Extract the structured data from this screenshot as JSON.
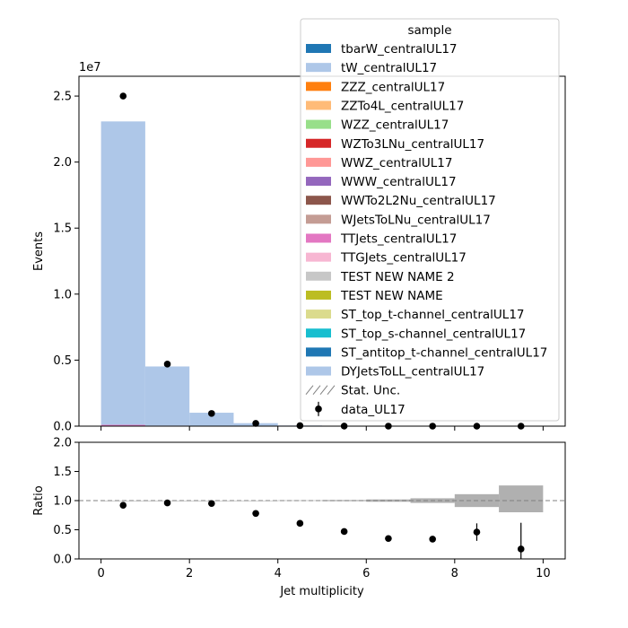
{
  "chart_data": [
    {
      "type": "bar",
      "panel": "main",
      "stacked": true,
      "xlabel": "",
      "ylabel": "Events",
      "y_scale_label": "1e7",
      "xlim": [
        -0.5,
        10.5
      ],
      "ylim": [
        0,
        26500000.0
      ],
      "x_ticks": [
        0,
        2,
        4,
        6,
        8,
        10
      ],
      "y_ticks": [
        0,
        5000000,
        10000000,
        15000000,
        20000000,
        25000000
      ],
      "y_tick_labels": [
        "0.0",
        "0.5",
        "1.0",
        "1.5",
        "2.0",
        "2.5"
      ],
      "bin_edges": [
        0,
        1,
        2,
        3,
        4,
        5,
        6,
        7,
        8,
        9,
        10
      ],
      "series": [
        {
          "name": "TTJets_centralUL17",
          "color": "#e377c2",
          "values": [
            100000,
            40000,
            15000,
            5000,
            2000,
            800,
            300,
            100,
            40,
            10
          ]
        },
        {
          "name": "DYJetsToLL_centralUL17",
          "color": "#aec7e8",
          "values": [
            22980000,
            4480000,
            1000000,
            220000,
            45000,
            8000,
            1500,
            300,
            60,
            15
          ]
        }
      ],
      "data": {
        "name": "data_UL17",
        "x": [
          0.5,
          1.5,
          2.5,
          3.5,
          4.5,
          5.5,
          6.5,
          7.5,
          8.5,
          9.5
        ],
        "y": [
          25000000,
          4700000,
          960000,
          210000,
          38000,
          5000,
          800,
          150,
          30,
          5
        ]
      },
      "legend": {
        "title": "sample",
        "placement": "top-right",
        "entries": [
          {
            "label": "tbarW_centralUL17",
            "color": "#1f77b4",
            "kind": "patch"
          },
          {
            "label": "tW_centralUL17",
            "color": "#aec7e8",
            "kind": "patch"
          },
          {
            "label": "ZZZ_centralUL17",
            "color": "#ff7f0e",
            "kind": "patch"
          },
          {
            "label": "ZZTo4L_centralUL17",
            "color": "#ffbb78",
            "kind": "patch"
          },
          {
            "label": "WZZ_centralUL17",
            "color": "#98df8a",
            "kind": "patch"
          },
          {
            "label": "WZTo3LNu_centralUL17",
            "color": "#d62728",
            "kind": "patch"
          },
          {
            "label": "WWZ_centralUL17",
            "color": "#ff9896",
            "kind": "patch"
          },
          {
            "label": "WWW_centralUL17",
            "color": "#9467bd",
            "kind": "patch"
          },
          {
            "label": "WWTo2L2Nu_centralUL17",
            "color": "#8c564b",
            "kind": "patch"
          },
          {
            "label": "WJetsToLNu_centralUL17",
            "color": "#c49c94",
            "kind": "patch"
          },
          {
            "label": "TTJets_centralUL17",
            "color": "#e377c2",
            "kind": "patch"
          },
          {
            "label": "TTGJets_centralUL17",
            "color": "#f7b6d2",
            "kind": "patch"
          },
          {
            "label": "TEST NEW NAME 2",
            "color": "#c7c7c7",
            "kind": "patch"
          },
          {
            "label": "TEST NEW NAME",
            "color": "#bcbd22",
            "kind": "patch"
          },
          {
            "label": "ST_top_t-channel_centralUL17",
            "color": "#dbdb8d",
            "kind": "patch"
          },
          {
            "label": "ST_top_s-channel_centralUL17",
            "color": "#17becf",
            "kind": "patch"
          },
          {
            "label": "ST_antitop_t-channel_centralUL17",
            "color": "#1f77b4",
            "kind": "patch"
          },
          {
            "label": "DYJetsToLL_centralUL17",
            "color": "#aec7e8",
            "kind": "patch"
          },
          {
            "label": "Stat. Unc.",
            "color": "#808080",
            "kind": "hatch"
          },
          {
            "label": "data_UL17",
            "color": "#000000",
            "kind": "marker"
          }
        ]
      }
    },
    {
      "type": "scatter",
      "panel": "ratio",
      "xlabel": "Jet multiplicity",
      "ylabel": "Ratio",
      "xlim": [
        -0.5,
        10.5
      ],
      "ylim": [
        0,
        2
      ],
      "x_ticks": [
        0,
        2,
        4,
        6,
        8,
        10
      ],
      "x_tick_labels": [
        "0",
        "2",
        "4",
        "6",
        "8",
        "10"
      ],
      "y_ticks": [
        0,
        0.5,
        1,
        1.5,
        2
      ],
      "y_tick_labels": [
        "0.0",
        "0.5",
        "1.0",
        "1.5",
        "2.0"
      ],
      "reference_line": 1.0,
      "x": [
        0.5,
        1.5,
        2.5,
        3.5,
        4.5,
        5.5,
        6.5,
        7.5,
        8.5,
        9.5
      ],
      "y": [
        0.92,
        0.96,
        0.95,
        0.78,
        0.61,
        0.47,
        0.35,
        0.34,
        0.46,
        0.17
      ],
      "yerr": [
        0.002,
        0.003,
        0.005,
        0.01,
        0.02,
        0.03,
        0.03,
        0.05,
        0.15,
        0.45
      ],
      "mc_uncertainty": {
        "bin_edges": [
          0,
          1,
          2,
          3,
          4,
          5,
          6,
          7,
          8,
          9,
          10
        ],
        "low": [
          1.0,
          1.0,
          1.0,
          0.999,
          0.995,
          0.99,
          0.98,
          0.96,
          0.89,
          0.8
        ],
        "high": [
          1.0,
          1.0,
          1.0,
          1.001,
          1.005,
          1.01,
          1.02,
          1.04,
          1.11,
          1.26
        ]
      }
    }
  ]
}
